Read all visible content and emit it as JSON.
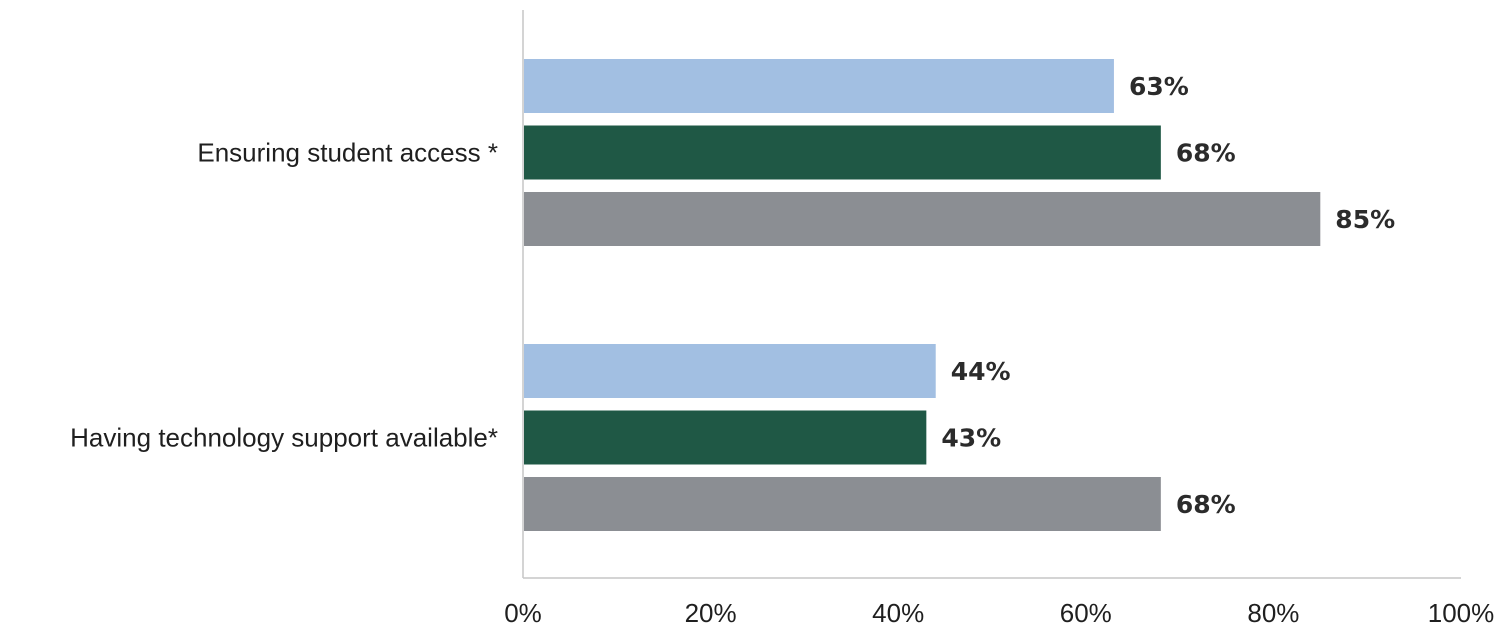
{
  "chart_data": {
    "type": "bar",
    "orientation": "horizontal",
    "categories": [
      "Ensuring student access *",
      "Having technology support available*"
    ],
    "series": [
      {
        "color": "#a2bfe2",
        "values": [
          63,
          44
        ],
        "labels": [
          "63%",
          "44%"
        ]
      },
      {
        "color": "#1f5845",
        "values": [
          68,
          43
        ],
        "labels": [
          "68%",
          "43%"
        ]
      },
      {
        "color": "#8b8e93",
        "values": [
          85,
          68
        ],
        "labels": [
          "85%",
          "68%"
        ]
      }
    ],
    "xlim": [
      0,
      100
    ],
    "xticks": [
      0,
      20,
      40,
      60,
      80,
      100
    ],
    "xtick_labels": [
      "0%",
      "20%",
      "40%",
      "60%",
      "80%",
      "100%"
    ],
    "grid": false,
    "legend": "none",
    "axis_color": "#c6c6c6"
  }
}
